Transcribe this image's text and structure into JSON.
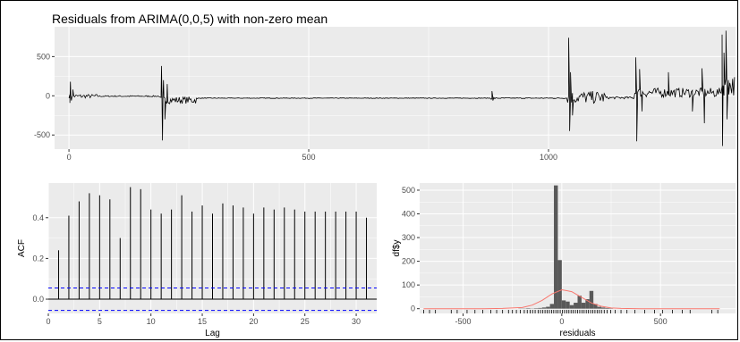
{
  "title": "Residuals from ARIMA(0,0,5) with non-zero mean",
  "colors": {
    "panel_bg": "#ebebeb",
    "grid": "#ffffff",
    "line": "#000000",
    "ci": "#0000ff",
    "hist_bar": "#595959",
    "density": "#f8766d",
    "tick_text": "#4d4d4d"
  },
  "chart_data": [
    {
      "type": "line",
      "panel": "residual-series",
      "title": "Residuals from ARIMA(0,0,5) with non-zero mean",
      "xlabel": "",
      "ylabel": "",
      "xlim": [
        -30,
        1390
      ],
      "ylim": [
        -680,
        880
      ],
      "xticks": [
        0,
        500,
        1000
      ],
      "yticks": [
        -500,
        0,
        500
      ],
      "tick_labels_x": [
        "0",
        "500",
        "1000"
      ],
      "tick_labels_y": [
        "-500",
        "0",
        "500"
      ],
      "segments": [
        {
          "x": [
            0,
            60
          ],
          "level": -5,
          "amp": 25,
          "spikes": [
            [
              2,
              -90
            ],
            [
              3,
              180
            ],
            [
              5,
              -60
            ],
            [
              8,
              80
            ]
          ]
        },
        {
          "x": [
            60,
            190
          ],
          "level": -5,
          "amp": 8,
          "spikes": []
        },
        {
          "x": [
            190,
            270
          ],
          "level": -55,
          "amp": 45,
          "spikes": [
            [
              193,
              380
            ],
            [
              195,
              -570
            ],
            [
              197,
              200
            ],
            [
              200,
              -300
            ],
            [
              205,
              150
            ]
          ]
        },
        {
          "x": [
            270,
            880
          ],
          "level": -30,
          "amp": 4,
          "spikes": []
        },
        {
          "x": [
            880,
            890
          ],
          "level": -30,
          "amp": 15,
          "spikes": [
            [
              882,
              60
            ],
            [
              884,
              -60
            ]
          ]
        },
        {
          "x": [
            890,
            1040
          ],
          "level": -30,
          "amp": 6,
          "spikes": []
        },
        {
          "x": [
            1040,
            1120
          ],
          "level": -20,
          "amp": 80,
          "spikes": [
            [
              1042,
              740
            ],
            [
              1044,
              -450
            ],
            [
              1046,
              300
            ],
            [
              1050,
              -250
            ]
          ]
        },
        {
          "x": [
            1120,
            1180
          ],
          "level": -25,
          "amp": 15,
          "spikes": []
        },
        {
          "x": [
            1180,
            1360
          ],
          "level": 40,
          "amp": 60,
          "spikes": [
            [
              1182,
              490
            ],
            [
              1184,
              -580
            ],
            [
              1190,
              340
            ],
            [
              1195,
              -200
            ],
            [
              1250,
              300
            ],
            [
              1300,
              -200
            ],
            [
              1320,
              350
            ],
            [
              1325,
              -350
            ]
          ]
        },
        {
          "x": [
            1360,
            1390
          ],
          "level": 130,
          "amp": 130,
          "spikes": [
            [
              1362,
              780
            ],
            [
              1363,
              -640
            ],
            [
              1366,
              550
            ],
            [
              1370,
              830
            ],
            [
              1372,
              -300
            ],
            [
              1375,
              200
            ]
          ]
        }
      ]
    },
    {
      "type": "bar",
      "panel": "acf",
      "xlabel": "Lag",
      "ylabel": "ACF",
      "xlim": [
        0,
        32
      ],
      "ylim": [
        -0.07,
        0.57
      ],
      "xticks": [
        0,
        5,
        10,
        15,
        20,
        25,
        30
      ],
      "yticks": [
        0.0,
        0.2,
        0.4
      ],
      "tick_labels_x": [
        "0",
        "5",
        "10",
        "15",
        "20",
        "25",
        "30"
      ],
      "tick_labels_y": [
        "0.0",
        "0.2",
        "0.4"
      ],
      "lags": [
        1,
        2,
        3,
        4,
        5,
        6,
        7,
        8,
        9,
        10,
        11,
        12,
        13,
        14,
        15,
        16,
        17,
        18,
        19,
        20,
        21,
        22,
        23,
        24,
        25,
        26,
        27,
        28,
        29,
        30,
        31
      ],
      "values": [
        0.24,
        0.41,
        0.48,
        0.52,
        0.51,
        0.49,
        0.3,
        0.55,
        0.54,
        0.44,
        0.42,
        0.44,
        0.51,
        0.43,
        0.46,
        0.42,
        0.47,
        0.46,
        0.45,
        0.42,
        0.45,
        0.44,
        0.45,
        0.44,
        0.43,
        0.43,
        0.43,
        0.43,
        0.43,
        0.43,
        0.4
      ],
      "ci": [
        0.055,
        -0.055
      ]
    },
    {
      "type": "bar",
      "panel": "histogram",
      "xlabel": "residuals",
      "ylabel": "df$y",
      "xlim": [
        -720,
        880
      ],
      "ylim": [
        -20,
        530
      ],
      "xticks": [
        -500,
        0,
        500
      ],
      "yticks": [
        0,
        100,
        200,
        300,
        400,
        500
      ],
      "tick_labels_x": [
        "-500",
        "0",
        "500"
      ],
      "tick_labels_y": [
        "0",
        "100",
        "200",
        "300",
        "400",
        "500"
      ],
      "bins": [
        [
          -220,
          -200,
          1
        ],
        [
          -200,
          -180,
          1
        ],
        [
          -180,
          -160,
          2
        ],
        [
          -160,
          -140,
          1
        ],
        [
          -140,
          -120,
          2
        ],
        [
          -120,
          -100,
          3
        ],
        [
          -100,
          -80,
          5
        ],
        [
          -80,
          -60,
          8
        ],
        [
          -60,
          -40,
          20
        ],
        [
          -40,
          -20,
          520
        ],
        [
          -20,
          0,
          205
        ],
        [
          0,
          20,
          35
        ],
        [
          20,
          40,
          30
        ],
        [
          40,
          60,
          15
        ],
        [
          60,
          80,
          25
        ],
        [
          80,
          100,
          55
        ],
        [
          100,
          120,
          25
        ],
        [
          120,
          140,
          40
        ],
        [
          140,
          160,
          75
        ],
        [
          160,
          180,
          20
        ],
        [
          180,
          200,
          8
        ],
        [
          200,
          220,
          5
        ],
        [
          220,
          240,
          3
        ],
        [
          240,
          260,
          2
        ]
      ],
      "density": {
        "x": [
          -700,
          -400,
          -300,
          -200,
          -150,
          -100,
          -50,
          0,
          50,
          100,
          150,
          200,
          250,
          300,
          400,
          500,
          800
        ],
        "y": [
          0,
          0,
          1,
          5,
          15,
          35,
          62,
          80,
          72,
          48,
          24,
          10,
          3,
          1,
          0,
          0,
          0
        ]
      },
      "rug": [
        -700,
        -670,
        -640,
        -560,
        -530,
        -480,
        -440,
        -400,
        -360,
        -330,
        -300,
        -270,
        -250,
        -230,
        -210,
        -190,
        -175,
        -160,
        -148,
        -135,
        -120,
        -108,
        -96,
        -85,
        -74,
        -63,
        -52,
        -41,
        -30,
        -19,
        -8,
        3,
        14,
        25,
        36,
        47,
        58,
        69,
        80,
        91,
        102,
        113,
        124,
        135,
        146,
        157,
        168,
        179,
        190,
        201,
        215,
        230,
        248,
        270,
        300,
        330,
        370,
        420,
        470,
        510,
        560,
        610,
        650,
        760,
        790
      ]
    }
  ]
}
